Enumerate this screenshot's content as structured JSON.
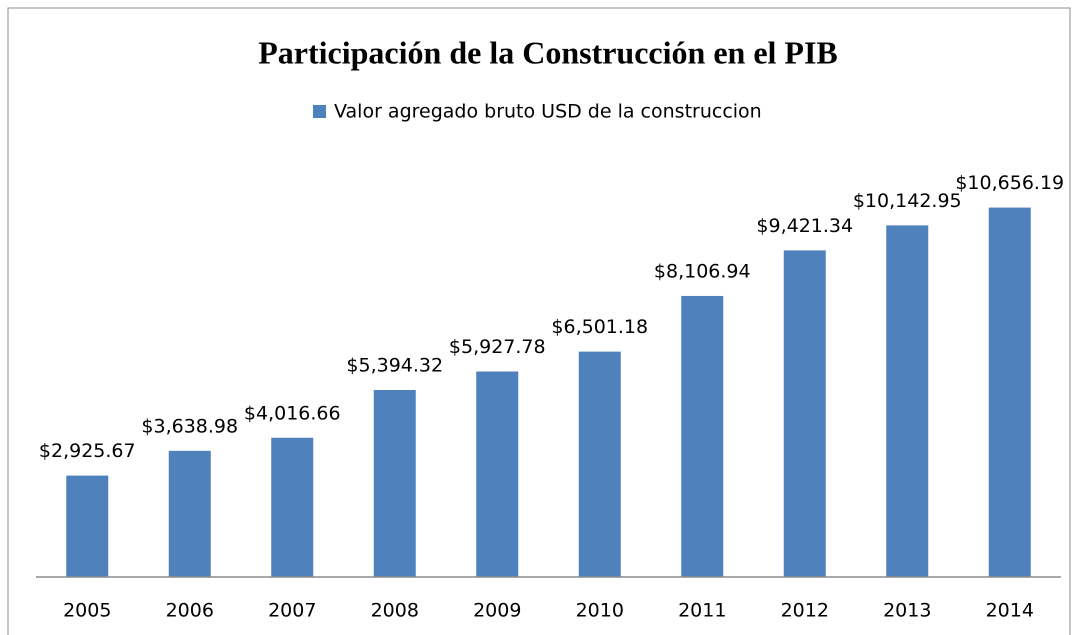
{
  "chart_data": {
    "type": "bar",
    "title": "Participación de la Construcción en el PIB",
    "categories": [
      "2005",
      "2006",
      "2007",
      "2008",
      "2009",
      "2010",
      "2011",
      "2012",
      "2013",
      "2014"
    ],
    "series": [
      {
        "name": "Valor agregado bruto USD de la construccion",
        "color": "#4f81bd",
        "values": [
          2925.67,
          3638.98,
          4016.66,
          5394.32,
          5927.78,
          6501.18,
          8106.94,
          9421.34,
          10142.95,
          10656.19
        ],
        "value_labels": [
          "$2,925.67",
          "$3,638.98",
          "$4,016.66",
          "$5,394.32",
          "$5,927.78",
          "$6,501.18",
          "$8,106.94",
          "$9,421.34",
          "$10,142.95",
          "$10,656.19"
        ]
      }
    ],
    "ylim": [
      0,
      12000
    ],
    "legend": "top"
  }
}
